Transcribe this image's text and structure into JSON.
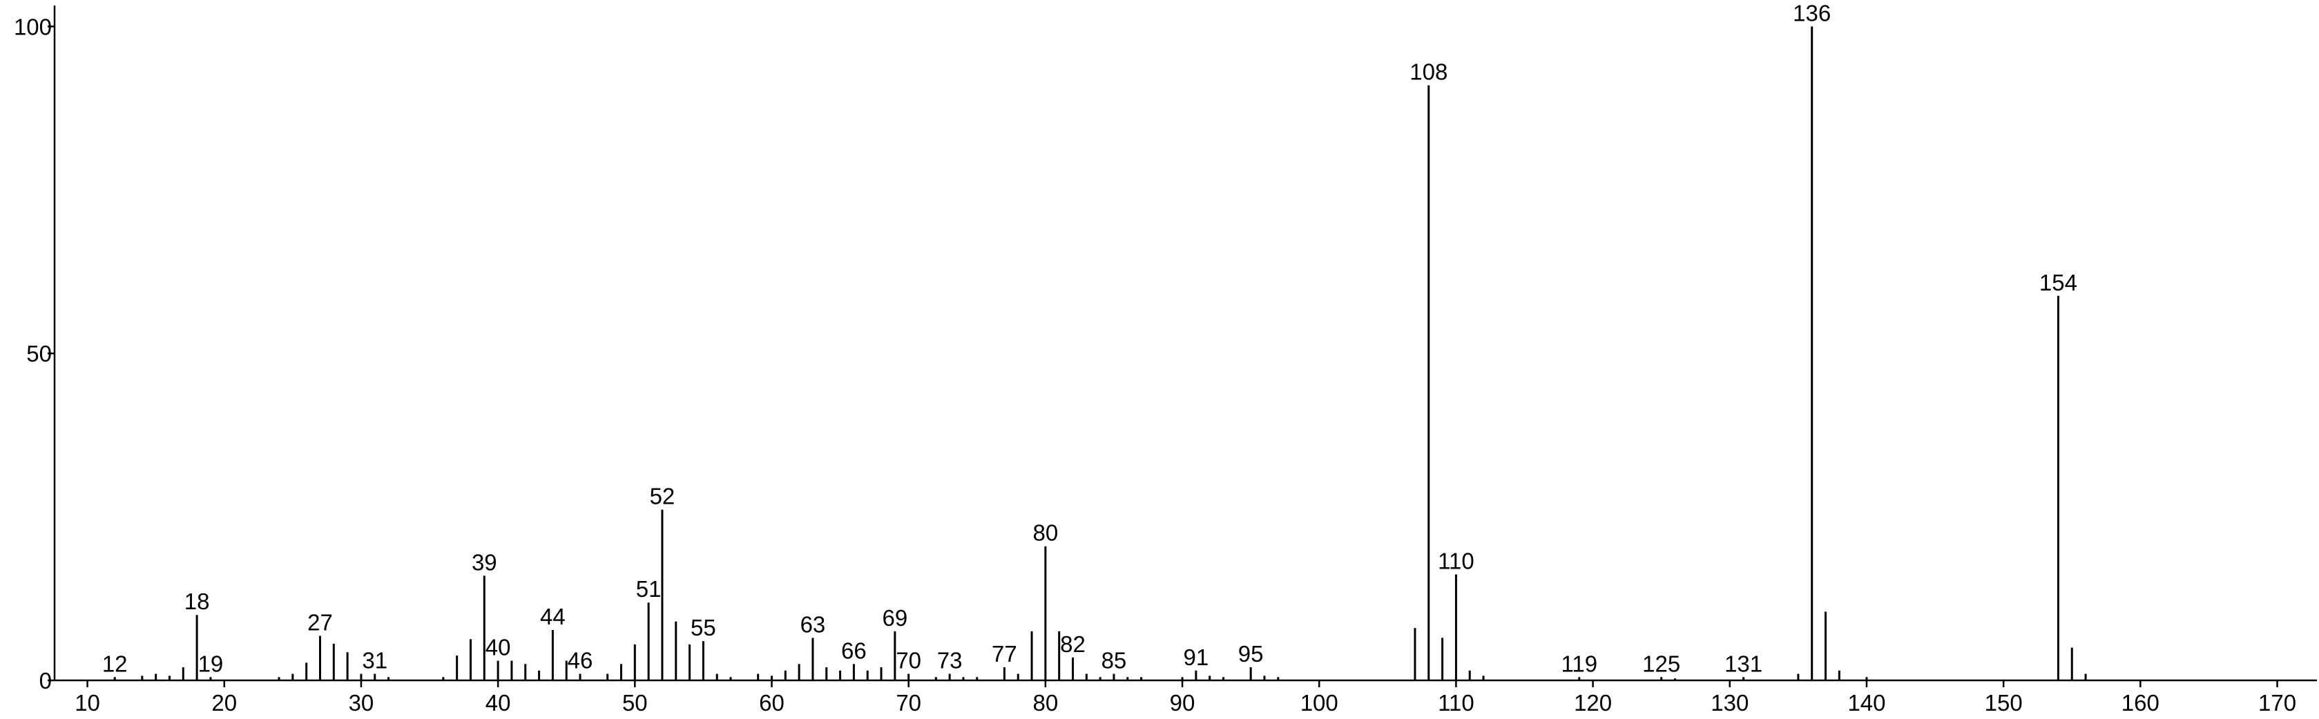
{
  "chart_data": {
    "type": "stem",
    "x": [
      12,
      14,
      15,
      16,
      17,
      18,
      19,
      24,
      25,
      26,
      27,
      28,
      29,
      30,
      31,
      32,
      36,
      37,
      38,
      39,
      40,
      41,
      42,
      43,
      44,
      45,
      46,
      48,
      49,
      50,
      51,
      52,
      53,
      54,
      55,
      56,
      57,
      59,
      60,
      61,
      62,
      63,
      64,
      65,
      66,
      67,
      68,
      69,
      70,
      72,
      73,
      74,
      75,
      77,
      78,
      79,
      80,
      81,
      82,
      83,
      84,
      85,
      86,
      87,
      90,
      91,
      92,
      93,
      95,
      96,
      97,
      107,
      108,
      109,
      110,
      111,
      112,
      119,
      125,
      126,
      131,
      135,
      136,
      137,
      138,
      140,
      154,
      155,
      156
    ],
    "values": [
      0.5,
      0.7,
      1,
      0.7,
      2,
      10,
      0.5,
      0.5,
      1,
      2.7,
      6.8,
      5.6,
      4.3,
      1,
      1,
      0.5,
      0.5,
      3.8,
      6.3,
      16,
      3,
      3,
      2.5,
      1.5,
      7.7,
      3,
      1,
      1,
      2.5,
      5.5,
      11.9,
      26.1,
      9,
      5.5,
      6,
      1,
      0.5,
      1,
      0.7,
      1.5,
      2.5,
      6.5,
      2,
      1.5,
      2.5,
      1.5,
      2,
      7.5,
      1,
      0.5,
      1,
      0.5,
      0.5,
      2,
      1,
      7.5,
      20.5,
      7.5,
      3.5,
      1,
      0.5,
      1,
      0.5,
      0.5,
      0.5,
      1.5,
      0.7,
      0.5,
      2,
      0.7,
      0.5,
      8,
      91,
      6.5,
      16.2,
      1.5,
      0.7,
      0.5,
      0.5,
      0.3,
      0.5,
      1,
      100,
      10.5,
      1.5,
      0.5,
      58.8,
      5,
      1
    ],
    "peak_labels": [
      true,
      false,
      false,
      false,
      false,
      true,
      true,
      false,
      false,
      false,
      true,
      false,
      false,
      false,
      true,
      false,
      false,
      false,
      false,
      true,
      true,
      false,
      false,
      false,
      true,
      false,
      true,
      false,
      false,
      false,
      true,
      true,
      false,
      false,
      true,
      false,
      false,
      false,
      false,
      false,
      false,
      true,
      false,
      false,
      true,
      false,
      false,
      true,
      true,
      false,
      true,
      false,
      false,
      true,
      false,
      false,
      true,
      false,
      true,
      false,
      false,
      true,
      false,
      false,
      false,
      true,
      false,
      false,
      true,
      false,
      false,
      false,
      true,
      false,
      true,
      false,
      false,
      true,
      true,
      false,
      true,
      false,
      true,
      false,
      false,
      false,
      true,
      false,
      false
    ],
    "color": "#000000",
    "xlim": [
      7.6,
      172.9
    ],
    "xticks": [
      10,
      20,
      30,
      40,
      50,
      60,
      70,
      80,
      90,
      100,
      110,
      120,
      130,
      140,
      150,
      160,
      170
    ],
    "ylim": [
      0,
      103.2
    ],
    "yticks": [
      0,
      50,
      100
    ]
  }
}
